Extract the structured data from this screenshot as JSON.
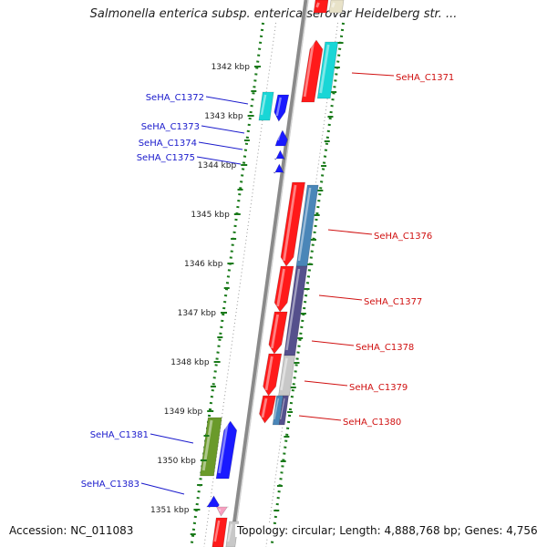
{
  "title": "Salmonella enterica subsp. enterica serovar Heidelberg str. ...",
  "footer": {
    "accession": "Accession: NC_011083",
    "summary": "Topology: circular; Length: 4,888,768 bp; Genes: 4,756"
  },
  "colors": {
    "red": "#ff1a1a",
    "cyan": "#19d6d6",
    "blue": "#1a1aff",
    "steelblue": "#4a86b8",
    "purple": "#55508c",
    "olive": "#6a9a2a",
    "grey": "#c8c8c8",
    "beige": "#e8e2c8",
    "pink": "#f6a0c0",
    "right_label": "#d01010",
    "left_label": "#1a1acc",
    "tick": "#1a7a1a"
  },
  "kbp_ticks": [
    "1342 kbp",
    "1343 kbp",
    "1344 kbp",
    "1345 kbp",
    "1346 kbp",
    "1347 kbp",
    "1348 kbp",
    "1349 kbp",
    "1350 kbp",
    "1351 kbp"
  ],
  "right_genes": [
    "SeHA_C1371",
    "SeHA_C1376",
    "SeHA_C1377",
    "SeHA_C1378",
    "SeHA_C1379",
    "SeHA_C1380"
  ],
  "left_genes": [
    "SeHA_C1372",
    "SeHA_C1373",
    "SeHA_C1374",
    "SeHA_C1375",
    "SeHA_C1381",
    "SeHA_C1383"
  ]
}
